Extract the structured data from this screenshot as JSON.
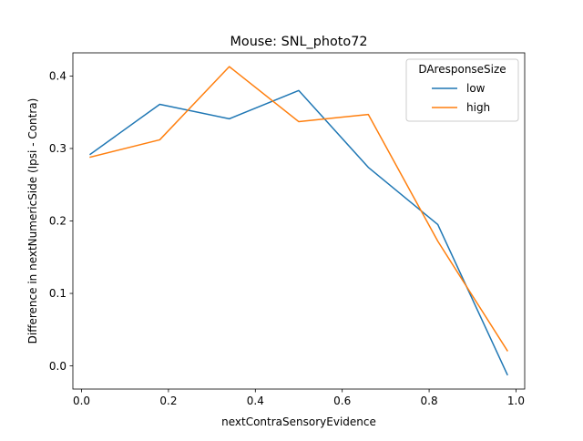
{
  "chart_data": {
    "type": "line",
    "title": "Mouse: SNL_photo72",
    "xlabel": "nextContraSensoryEvidence",
    "ylabel": "Difference in nextNumericSide (Ipsi - Contra)",
    "xlim": [
      -0.02,
      1.02
    ],
    "ylim": [
      -0.032,
      0.432
    ],
    "xticks": [
      0.0,
      0.2,
      0.4,
      0.6,
      0.8,
      1.0
    ],
    "xtick_labels": [
      "0.0",
      "0.2",
      "0.4",
      "0.6",
      "0.8",
      "1.0"
    ],
    "yticks": [
      0.0,
      0.1,
      0.2,
      0.3,
      0.4
    ],
    "ytick_labels": [
      "0.0",
      "0.1",
      "0.2",
      "0.3",
      "0.4"
    ],
    "grid": false,
    "legend": {
      "title": "DAresponseSize",
      "placement": "top-right"
    },
    "x": [
      0.02,
      0.18,
      0.34,
      0.5,
      0.66,
      0.82,
      0.98
    ],
    "series": [
      {
        "name": "low",
        "color": "#1f77b4",
        "values": [
          0.292,
          0.361,
          0.341,
          0.38,
          0.274,
          0.195,
          -0.012
        ]
      },
      {
        "name": "high",
        "color": "#ff7f0e",
        "values": [
          0.288,
          0.312,
          0.413,
          0.337,
          0.347,
          0.172,
          0.021
        ]
      }
    ]
  }
}
